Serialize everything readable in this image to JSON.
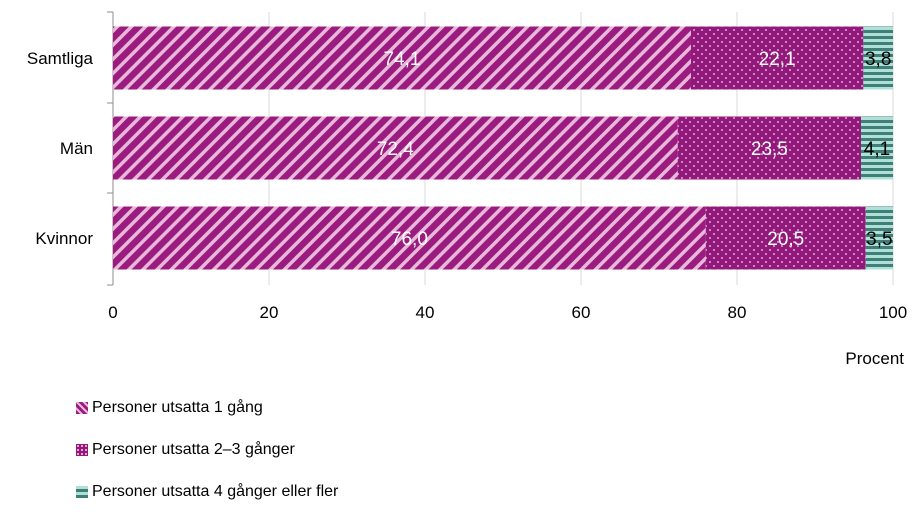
{
  "chart_data": {
    "type": "bar",
    "orientation": "horizontal",
    "stacked": true,
    "categories": [
      "Samtliga",
      "Män",
      "Kvinnor"
    ],
    "series": [
      {
        "name": "Personer utsatta 1 gång",
        "values": [
          74.1,
          72.4,
          76.0
        ],
        "labels": [
          "74,1",
          "72,4",
          "76,0"
        ],
        "color": "#9b1b7e",
        "pattern": "diagonal-stripes"
      },
      {
        "name": "Personer utsatta 2–3 gånger",
        "values": [
          22.1,
          23.5,
          20.5
        ],
        "labels": [
          "22,1",
          "23,5",
          "20,5"
        ],
        "color": "#93187b",
        "pattern": "dots"
      },
      {
        "name": "Personer utsatta 4 gånger eller fler",
        "values": [
          3.8,
          4.1,
          3.5
        ],
        "labels": [
          "3,8",
          "4,1",
          "3,5"
        ],
        "color": "#3f7f78",
        "pattern": "horizontal-stripes"
      }
    ],
    "xlim": [
      0,
      100
    ],
    "xticks": [
      "0",
      "20",
      "40",
      "60",
      "80",
      "100"
    ],
    "xlabel": "Procent",
    "ylabel": "",
    "title": "",
    "grid": true,
    "legend_position": "bottom-left"
  }
}
